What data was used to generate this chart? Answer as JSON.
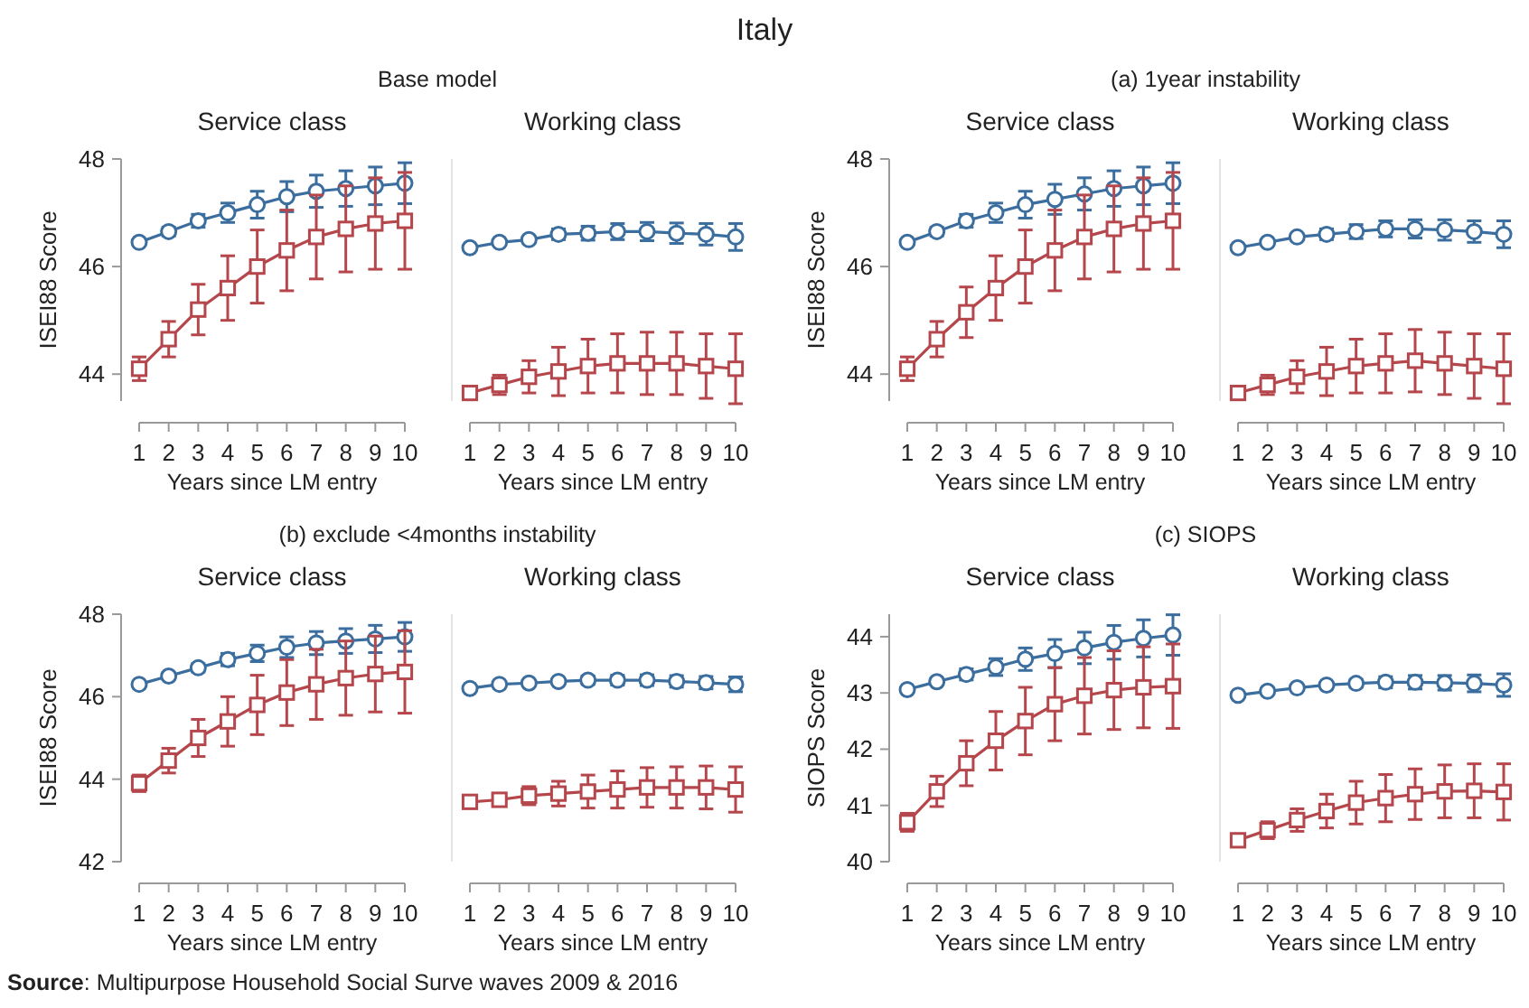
{
  "chart_data": [
    {
      "type": "line",
      "title": "Service class",
      "subtitle": "Base model",
      "annotations": [
        "Italy"
      ],
      "ylabel": "ISEI88 Score",
      "xlabel": "Years since LM entry",
      "x": [
        1,
        2,
        3,
        4,
        5,
        6,
        7,
        8,
        9,
        10
      ],
      "xlim": [
        1,
        10
      ],
      "xticks": [
        1,
        2,
        3,
        4,
        5,
        6,
        7,
        8,
        9,
        10
      ],
      "ylim": [
        43.5,
        48
      ],
      "yticks": [
        44,
        46,
        48
      ],
      "series": [
        {
          "color": "#3b6e9e",
          "marker": "circle",
          "values": [
            46.45,
            46.65,
            46.85,
            47.0,
            47.15,
            47.3,
            47.4,
            47.45,
            47.5,
            47.55
          ],
          "errors": [
            0.05,
            0.08,
            0.12,
            0.18,
            0.25,
            0.28,
            0.3,
            0.33,
            0.35,
            0.38
          ]
        },
        {
          "color": "#b5474c",
          "marker": "square",
          "values": [
            44.1,
            44.65,
            45.2,
            45.6,
            46.0,
            46.3,
            46.55,
            46.7,
            46.8,
            46.85
          ],
          "errors": [
            0.22,
            0.33,
            0.47,
            0.6,
            0.68,
            0.75,
            0.78,
            0.8,
            0.85,
            0.9
          ]
        }
      ]
    },
    {
      "type": "line",
      "title": "Working class",
      "xlabel": "Years since LM entry",
      "tick_labels": "x",
      "x": [
        1,
        2,
        3,
        4,
        5,
        6,
        7,
        8,
        9,
        10
      ],
      "xlim": [
        1,
        10
      ],
      "xticks": [
        1,
        2,
        3,
        4,
        5,
        6,
        7,
        8,
        9,
        10
      ],
      "ylim": [
        43.5,
        48
      ],
      "series": [
        {
          "color": "#3b6e9e",
          "marker": "circle",
          "values": [
            46.35,
            46.45,
            46.5,
            46.6,
            46.62,
            46.65,
            46.65,
            46.62,
            46.6,
            46.55
          ],
          "errors": [
            0.03,
            0.05,
            0.06,
            0.1,
            0.13,
            0.15,
            0.17,
            0.19,
            0.2,
            0.25
          ]
        },
        {
          "color": "#b5474c",
          "marker": "square",
          "values": [
            43.65,
            43.8,
            43.95,
            44.05,
            44.15,
            44.2,
            44.2,
            44.2,
            44.15,
            44.1
          ],
          "errors": [
            0.08,
            0.18,
            0.3,
            0.45,
            0.5,
            0.55,
            0.58,
            0.58,
            0.6,
            0.65
          ]
        }
      ]
    },
    {
      "type": "line",
      "title": "Service class",
      "subtitle": "(a) 1year instability",
      "ylabel": "ISEI88 Score",
      "xlabel": "Years since LM entry",
      "x": [
        1,
        2,
        3,
        4,
        5,
        6,
        7,
        8,
        9,
        10
      ],
      "xlim": [
        1,
        10
      ],
      "xticks": [
        1,
        2,
        3,
        4,
        5,
        6,
        7,
        8,
        9,
        10
      ],
      "ylim": [
        43.5,
        48
      ],
      "yticks": [
        44,
        46,
        48
      ],
      "series": [
        {
          "color": "#3b6e9e",
          "marker": "circle",
          "values": [
            46.45,
            46.65,
            46.85,
            47.0,
            47.15,
            47.25,
            47.35,
            47.45,
            47.5,
            47.55
          ],
          "errors": [
            0.05,
            0.08,
            0.12,
            0.18,
            0.25,
            0.28,
            0.3,
            0.33,
            0.35,
            0.38
          ]
        },
        {
          "color": "#b5474c",
          "marker": "square",
          "values": [
            44.1,
            44.65,
            45.15,
            45.6,
            46.0,
            46.3,
            46.55,
            46.7,
            46.8,
            46.85
          ],
          "errors": [
            0.22,
            0.33,
            0.47,
            0.6,
            0.68,
            0.75,
            0.78,
            0.8,
            0.85,
            0.9
          ]
        }
      ]
    },
    {
      "type": "line",
      "title": "Working class",
      "xlabel": "Years since LM entry",
      "tick_labels": "x",
      "x": [
        1,
        2,
        3,
        4,
        5,
        6,
        7,
        8,
        9,
        10
      ],
      "xlim": [
        1,
        10
      ],
      "xticks": [
        1,
        2,
        3,
        4,
        5,
        6,
        7,
        8,
        9,
        10
      ],
      "ylim": [
        43.5,
        48
      ],
      "series": [
        {
          "color": "#3b6e9e",
          "marker": "circle",
          "values": [
            46.35,
            46.45,
            46.55,
            46.6,
            46.65,
            46.7,
            46.7,
            46.68,
            46.65,
            46.6
          ],
          "errors": [
            0.03,
            0.05,
            0.06,
            0.1,
            0.13,
            0.15,
            0.17,
            0.19,
            0.2,
            0.25
          ]
        },
        {
          "color": "#b5474c",
          "marker": "square",
          "values": [
            43.65,
            43.8,
            43.95,
            44.05,
            44.15,
            44.2,
            44.25,
            44.2,
            44.15,
            44.1
          ],
          "errors": [
            0.08,
            0.18,
            0.3,
            0.45,
            0.5,
            0.55,
            0.58,
            0.58,
            0.6,
            0.65
          ]
        }
      ]
    },
    {
      "type": "line",
      "title": "Service class",
      "subtitle": "(b) exclude <4months instability",
      "ylabel": "ISEI88 Score",
      "xlabel": "Years since LM entry",
      "x": [
        1,
        2,
        3,
        4,
        5,
        6,
        7,
        8,
        9,
        10
      ],
      "xlim": [
        1,
        10
      ],
      "xticks": [
        1,
        2,
        3,
        4,
        5,
        6,
        7,
        8,
        9,
        10
      ],
      "ylim": [
        42,
        48
      ],
      "yticks": [
        42,
        44,
        46,
        48
      ],
      "series": [
        {
          "color": "#3b6e9e",
          "marker": "circle",
          "values": [
            46.3,
            46.5,
            46.7,
            46.9,
            47.05,
            47.2,
            47.3,
            47.35,
            47.4,
            47.45
          ],
          "errors": [
            0.05,
            0.08,
            0.1,
            0.15,
            0.2,
            0.25,
            0.28,
            0.3,
            0.33,
            0.35
          ]
        },
        {
          "color": "#b5474c",
          "marker": "square",
          "values": [
            43.9,
            44.45,
            45.0,
            45.4,
            45.8,
            46.1,
            46.3,
            46.45,
            46.55,
            46.6
          ],
          "errors": [
            0.2,
            0.3,
            0.45,
            0.6,
            0.72,
            0.8,
            0.85,
            0.9,
            0.92,
            1.0
          ]
        }
      ]
    },
    {
      "type": "line",
      "title": "Working class",
      "xlabel": "Years since LM entry",
      "tick_labels": "x",
      "x": [
        1,
        2,
        3,
        4,
        5,
        6,
        7,
        8,
        9,
        10
      ],
      "xlim": [
        1,
        10
      ],
      "xticks": [
        1,
        2,
        3,
        4,
        5,
        6,
        7,
        8,
        9,
        10
      ],
      "ylim": [
        42,
        48
      ],
      "series": [
        {
          "color": "#3b6e9e",
          "marker": "circle",
          "values": [
            46.2,
            46.3,
            46.33,
            46.37,
            46.4,
            46.4,
            46.4,
            46.37,
            46.34,
            46.3
          ],
          "errors": [
            0.03,
            0.04,
            0.05,
            0.07,
            0.1,
            0.12,
            0.13,
            0.14,
            0.15,
            0.18
          ]
        },
        {
          "color": "#b5474c",
          "marker": "square",
          "values": [
            43.45,
            43.5,
            43.6,
            43.65,
            43.7,
            43.75,
            43.8,
            43.8,
            43.8,
            43.75
          ],
          "errors": [
            null,
            0.1,
            0.22,
            0.3,
            0.4,
            0.45,
            0.48,
            0.5,
            0.52,
            0.55
          ]
        }
      ]
    },
    {
      "type": "line",
      "title": "Service class",
      "subtitle": "(c) SIOPS",
      "ylabel": "SIOPS Score",
      "xlabel": "Years since LM entry",
      "x": [
        1,
        2,
        3,
        4,
        5,
        6,
        7,
        8,
        9,
        10
      ],
      "xlim": [
        1,
        10
      ],
      "xticks": [
        1,
        2,
        3,
        4,
        5,
        6,
        7,
        8,
        9,
        10
      ],
      "ylim": [
        40,
        44.4
      ],
      "yticks": [
        40,
        41,
        42,
        43,
        44
      ],
      "series": [
        {
          "color": "#3b6e9e",
          "marker": "circle",
          "values": [
            43.06,
            43.2,
            43.33,
            43.46,
            43.6,
            43.7,
            43.8,
            43.9,
            43.97,
            44.03
          ],
          "errors": [
            0.04,
            0.06,
            0.1,
            0.15,
            0.2,
            0.25,
            0.28,
            0.3,
            0.33,
            0.36
          ]
        },
        {
          "color": "#b5474c",
          "marker": "square",
          "values": [
            40.7,
            41.25,
            41.75,
            42.15,
            42.5,
            42.8,
            42.95,
            43.05,
            43.1,
            43.12
          ],
          "errors": [
            0.16,
            0.27,
            0.4,
            0.52,
            0.6,
            0.65,
            0.68,
            0.7,
            0.72,
            0.75
          ]
        }
      ]
    },
    {
      "type": "line",
      "title": "Working class",
      "xlabel": "Years since LM entry",
      "tick_labels": "x",
      "annotations": [
        "Source: Multipurpose Household Social Surve waves 2009 & 2016"
      ],
      "x": [
        1,
        2,
        3,
        4,
        5,
        6,
        7,
        8,
        9,
        10
      ],
      "xlim": [
        1,
        10
      ],
      "xticks": [
        1,
        2,
        3,
        4,
        5,
        6,
        7,
        8,
        9,
        10
      ],
      "ylim": [
        40,
        44.4
      ],
      "series": [
        {
          "color": "#3b6e9e",
          "marker": "circle",
          "values": [
            42.96,
            43.03,
            43.09,
            43.14,
            43.17,
            43.19,
            43.19,
            43.18,
            43.17,
            43.14
          ],
          "errors": [
            0.03,
            0.03,
            0.04,
            0.05,
            0.07,
            0.1,
            0.12,
            0.13,
            0.15,
            0.2
          ]
        },
        {
          "color": "#b5474c",
          "marker": "square",
          "values": [
            40.38,
            40.56,
            40.74,
            40.9,
            41.05,
            41.13,
            41.2,
            41.25,
            41.26,
            41.24
          ],
          "errors": [
            0.04,
            0.15,
            0.2,
            0.3,
            0.38,
            0.42,
            0.45,
            0.47,
            0.48,
            0.5
          ]
        }
      ]
    }
  ]
}
